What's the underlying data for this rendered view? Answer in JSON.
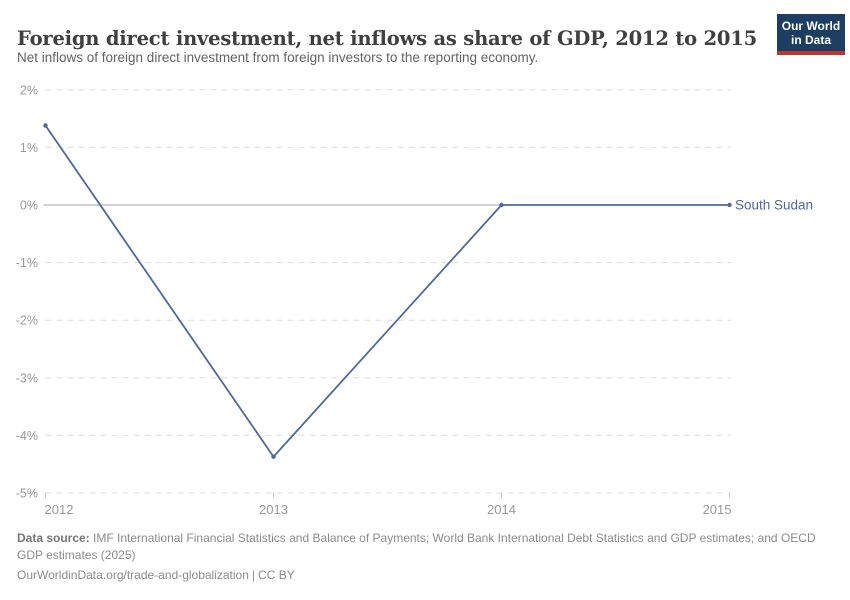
{
  "header": {
    "title": "Foreign direct investment, net inflows as share of GDP, 2012 to 2015",
    "subtitle": "Net inflows of foreign direct investment from foreign investors to the reporting economy."
  },
  "logo": {
    "line1": "Our World",
    "line2": "in Data"
  },
  "chart_data": {
    "type": "line",
    "title": "Foreign direct investment, net inflows as share of GDP, 2012 to 2015",
    "x": [
      2012,
      2013,
      2014,
      2015
    ],
    "x_ticks": [
      "2012",
      "2013",
      "2014",
      "2015"
    ],
    "series": [
      {
        "name": "South Sudan",
        "values": [
          1.38,
          -4.37,
          0.0,
          0.0
        ],
        "color": "#4c6a9c"
      }
    ],
    "y_ticks": [
      2,
      1,
      0,
      -1,
      -2,
      -3,
      -4,
      -5
    ],
    "y_tick_labels": [
      "2%",
      "1%",
      "0%",
      "-1%",
      "-2%",
      "-3%",
      "-4%",
      "-5%"
    ],
    "ylim": [
      -5,
      2
    ],
    "xlabel": "",
    "ylabel": "",
    "grid": "horizontal-dashed",
    "zero_line": true,
    "legend_position": "line-end-label",
    "colors": {
      "series": "#4c6a9c",
      "gridline": "#dedede",
      "zero_line": "#a3a3a3",
      "axis_label": "#9a9a9a",
      "tick": "#c4c4c4"
    }
  },
  "footer": {
    "source_label": "Data source:",
    "source_text": "IMF International Financial Statistics and Balance of Payments; World Bank International Debt Statistics and GDP estimates; and OECD GDP estimates (2025)",
    "url": "OurWorldinData.org/trade-and-globalization",
    "separator": "|",
    "license": "CC BY"
  }
}
